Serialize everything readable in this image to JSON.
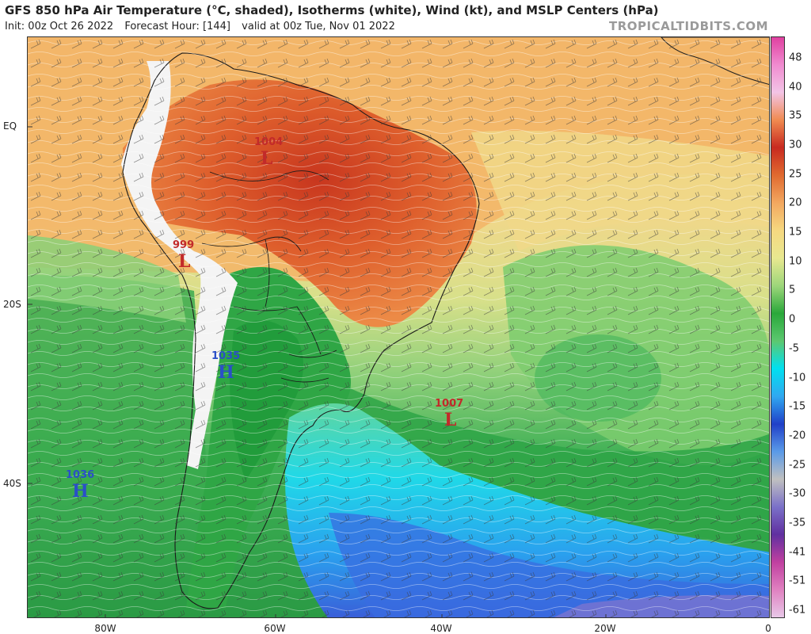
{
  "header": {
    "title": "GFS 850 hPa Air Temperature (°C, shaded), Isotherms (white), Wind (kt), and MSLP Centers (hPa)",
    "init": "Init: 00z Oct 26 2022",
    "forecast_hour": "Forecast Hour: [144]",
    "valid": "valid at 00z Tue, Nov 01 2022",
    "credit": "TROPICALTIDBITS.COM"
  },
  "axes": {
    "lat_labels": [
      "EQ",
      "20S",
      "40S"
    ],
    "lon_labels": [
      "80W",
      "60W",
      "40W",
      "20W",
      "0"
    ]
  },
  "colorbar": {
    "labels": [
      "48",
      "40",
      "35",
      "30",
      "25",
      "20",
      "15",
      "10",
      "5",
      "0",
      "-5",
      "-10",
      "-15",
      "-20",
      "-25",
      "-30",
      "-35",
      "-41",
      "-51",
      "-61"
    ],
    "colors": [
      "#e040a0",
      "#f08cd0",
      "#f3c4e6",
      "#f08a50",
      "#c82a20",
      "#e06a30",
      "#f3a860",
      "#f6d880",
      "#e8e890",
      "#9cd67a",
      "#2aa83a",
      "#5cc870",
      "#00e0f0",
      "#30a8f0",
      "#2040c8",
      "#5a9ae8",
      "#c0c0c0",
      "#7a70c8",
      "#6030a0",
      "#c040a0",
      "#e080c0",
      "#e8c8e8"
    ]
  },
  "pressure_centers": [
    {
      "type": "L",
      "value": "1004",
      "color": "#c22a2a"
    },
    {
      "type": "L",
      "value": "999",
      "color": "#c22a2a"
    },
    {
      "type": "H",
      "value": "1035",
      "color": "#2a4fc8"
    },
    {
      "type": "L",
      "value": "1007",
      "color": "#c22a2a"
    },
    {
      "type": "H",
      "value": "1036",
      "color": "#2a4fc8"
    }
  ]
}
